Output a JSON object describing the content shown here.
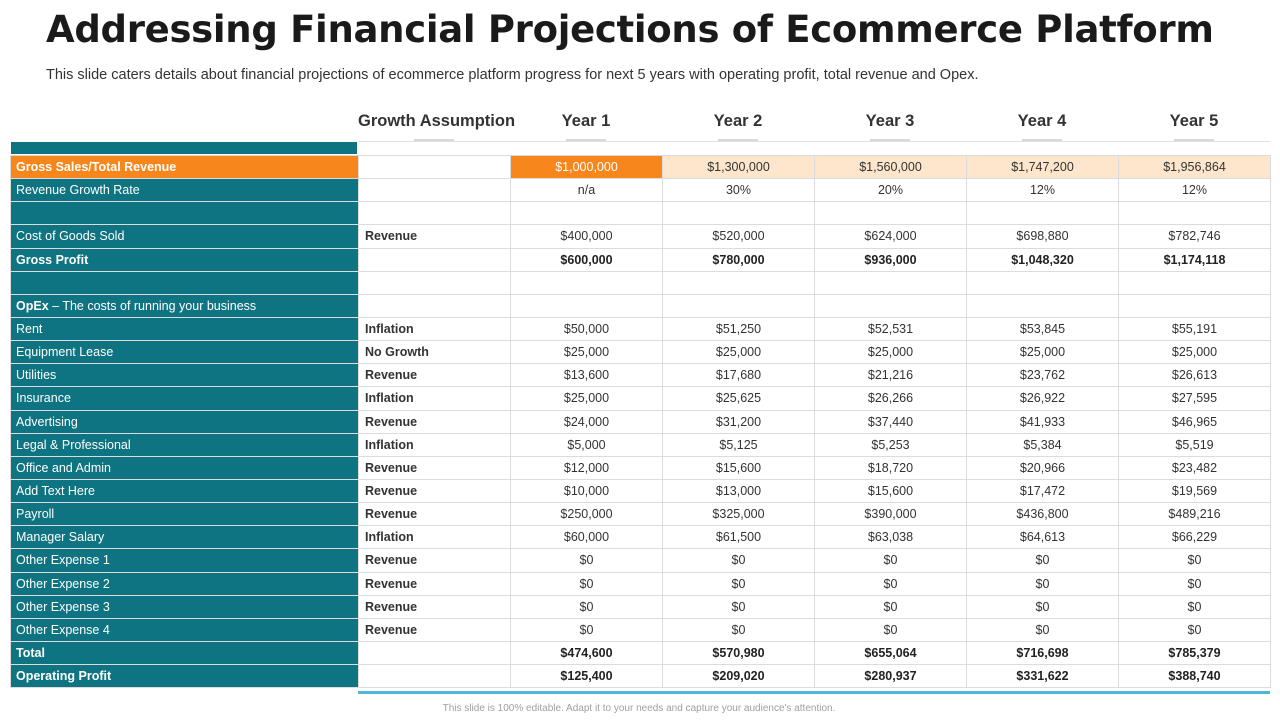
{
  "title": "Addressing Financial Projections of Ecommerce Platform",
  "subtitle": "This slide caters details about financial projections of ecommerce platform progress for next 5 years with operating profit, total revenue and Opex.",
  "columns": {
    "assumption": "Growth Assumption",
    "years": [
      "Year 1",
      "Year 2",
      "Year 3",
      "Year 4",
      "Year 5"
    ]
  },
  "rows": [
    {
      "label": "Gross  Sales/Total Revenue",
      "assumption": "",
      "values": [
        "$1,000,000",
        "$1,300,000",
        "$1,560,000",
        "$1,747,200",
        "$1,956,864"
      ]
    },
    {
      "label": "Revenue  Growth Rate",
      "assumption": "",
      "values": [
        "n/a",
        "30%",
        "20%",
        "12%",
        "12%"
      ]
    },
    {
      "label": "",
      "assumption": "",
      "values": [
        "",
        "",
        "",
        "",
        ""
      ]
    },
    {
      "label": "Cost of Goods Sold",
      "assumption": "Revenue",
      "values": [
        "$400,000",
        "$520,000",
        "$624,000",
        "$698,880",
        "$782,746"
      ]
    },
    {
      "label": "Gross  Profit",
      "assumption": "",
      "values": [
        "$600,000",
        "$780,000",
        "$936,000",
        "$1,048,320",
        "$1,174,118"
      ]
    },
    {
      "label": "",
      "assumption": "",
      "values": [
        "",
        "",
        "",
        "",
        ""
      ]
    },
    {
      "label_bold": "OpEx",
      "label": " – The  costs of running  your business",
      "assumption": "",
      "values": [
        "",
        "",
        "",
        "",
        ""
      ]
    },
    {
      "label": "Rent",
      "assumption": "Inflation",
      "values": [
        "$50,000",
        "$51,250",
        "$52,531",
        "$53,845",
        "$55,191"
      ]
    },
    {
      "label": "Equipment Lease",
      "assumption": "No Growth",
      "values": [
        "$25,000",
        "$25,000",
        "$25,000",
        "$25,000",
        "$25,000"
      ]
    },
    {
      "label": "Utilities",
      "assumption": "Revenue",
      "values": [
        "$13,600",
        "$17,680",
        "$21,216",
        "$23,762",
        "$26,613"
      ]
    },
    {
      "label": "Insurance",
      "assumption": "Inflation",
      "values": [
        "$25,000",
        "$25,625",
        "$26,266",
        "$26,922",
        "$27,595"
      ]
    },
    {
      "label": "Advertising",
      "assumption": "Revenue",
      "values": [
        "$24,000",
        "$31,200",
        "$37,440",
        "$41,933",
        "$46,965"
      ]
    },
    {
      "label": "Legal & Professional",
      "assumption": "Inflation",
      "values": [
        "$5,000",
        "$5,125",
        "$5,253",
        "$5,384",
        "$5,519"
      ]
    },
    {
      "label": "Office and Admin",
      "assumption": "Revenue",
      "values": [
        "$12,000",
        "$15,600",
        "$18,720",
        "$20,966",
        "$23,482"
      ]
    },
    {
      "label": "Add Text Here",
      "assumption": "Revenue",
      "values": [
        "$10,000",
        "$13,000",
        "$15,600",
        "$17,472",
        "$19,569"
      ]
    },
    {
      "label": "Payroll",
      "assumption": "Revenue",
      "values": [
        "$250,000",
        "$325,000",
        "$390,000",
        "$436,800",
        "$489,216"
      ]
    },
    {
      "label": "Manager Salary",
      "assumption": "Inflation",
      "values": [
        "$60,000",
        "$61,500",
        "$63,038",
        "$64,613",
        "$66,229"
      ]
    },
    {
      "label": "Other Expense 1",
      "assumption": "Revenue",
      "values": [
        "$0",
        "$0",
        "$0",
        "$0",
        "$0"
      ]
    },
    {
      "label": "Other Expense 2",
      "assumption": "Revenue",
      "values": [
        "$0",
        "$0",
        "$0",
        "$0",
        "$0"
      ]
    },
    {
      "label": "Other Expense 3",
      "assumption": "Revenue",
      "values": [
        "$0",
        "$0",
        "$0",
        "$0",
        "$0"
      ]
    },
    {
      "label": "Other Expense 4",
      "assumption": "Revenue",
      "values": [
        "$0",
        "$0",
        "$0",
        "$0",
        "$0"
      ]
    },
    {
      "label": "Total",
      "assumption": "",
      "values": [
        "$474,600",
        "$570,980",
        "$655,064",
        "$716,698",
        "$785,379"
      ]
    },
    {
      "label": "Operating Profit",
      "assumption": "",
      "values": [
        "$125,400",
        "$209,020",
        "$280,937",
        "$331,622",
        "$388,740"
      ]
    }
  ],
  "footer": "This slide is 100% editable. Adapt it to your needs and capture your audience's attention.",
  "colors": {
    "label_band": "#0f7482",
    "highlight_orange": "#f7861c",
    "highlight_peach": "#fde6cc",
    "accent_line": "#4db6d9"
  }
}
